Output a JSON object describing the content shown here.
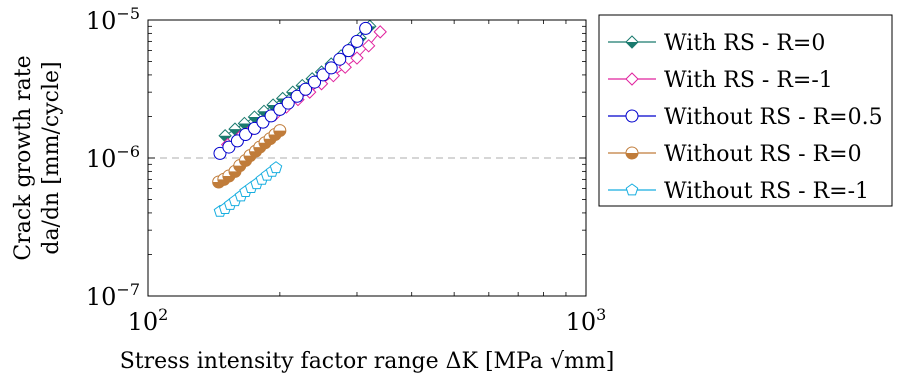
{
  "chart_data": {
    "type": "scatter",
    "xlabel": "Stress intensity factor range ΔK [MPa √mm]",
    "ylabel_line1": "Crack growth rate",
    "ylabel_line2": "da/dn [mm/cycle]",
    "xscale": "log",
    "yscale": "log",
    "xlim": [
      100,
      1000
    ],
    "ylim": [
      1e-07,
      1e-05
    ],
    "xticks": [
      {
        "value": 100,
        "label": "10",
        "exp": "2"
      },
      {
        "value": 1000,
        "label": "10",
        "exp": "3"
      }
    ],
    "yticks": [
      {
        "value": 1e-07,
        "label": "10",
        "exp": "−7"
      },
      {
        "value": 1e-06,
        "label": "10",
        "exp": "−6"
      },
      {
        "value": 1e-05,
        "label": "10",
        "exp": "−5"
      }
    ],
    "reference_line": {
      "y": 1e-06,
      "style": "dashed"
    },
    "legend_position": "outside-right",
    "series": [
      {
        "name": "With RS - R=0",
        "color": "#1a7a6e",
        "marker": "diamond-filled-half",
        "x": [
          150,
          158,
          166,
          175,
          184,
          193,
          203,
          214,
          225,
          237,
          249,
          262,
          276,
          290,
          305,
          321
        ],
        "y": [
          1.45e-06,
          1.62e-06,
          1.78e-06,
          1.98e-06,
          2.18e-06,
          2.42e-06,
          2.7e-06,
          3e-06,
          3.35e-06,
          3.75e-06,
          4.2e-06,
          4.8e-06,
          5.5e-06,
          6.3e-06,
          7.4e-06,
          9e-06
        ]
      },
      {
        "name": "With RS - R=-1",
        "color": "#e0239e",
        "marker": "diamond",
        "x": [
          152,
          162,
          172,
          183,
          195,
          207,
          220,
          234,
          249,
          265,
          282,
          300,
          319,
          339
        ],
        "y": [
          1.25e-06,
          1.42e-06,
          1.6e-06,
          1.82e-06,
          2.06e-06,
          2.34e-06,
          2.65e-06,
          3e-06,
          3.45e-06,
          3.95e-06,
          4.55e-06,
          5.3e-06,
          6.5e-06,
          8.2e-06
        ]
      },
      {
        "name": "Without RS - R=0.5",
        "color": "#0000cc",
        "marker": "circle",
        "x": [
          146,
          153,
          160,
          167,
          175,
          183,
          191,
          200,
          209,
          219,
          229,
          240,
          251,
          262,
          274,
          287,
          300,
          314
        ],
        "y": [
          1.08e-06,
          1.2e-06,
          1.33e-06,
          1.48e-06,
          1.64e-06,
          1.82e-06,
          2.02e-06,
          2.25e-06,
          2.5e-06,
          2.8e-06,
          3.15e-06,
          3.55e-06,
          4e-06,
          4.5e-06,
          5.2e-06,
          6e-06,
          7e-06,
          8.7e-06
        ]
      },
      {
        "name": "Without RS - R=0",
        "color": "#c07c3a",
        "marker": "circle-half",
        "x": [
          145,
          149,
          153,
          158,
          162,
          167,
          171,
          176,
          180,
          185,
          190,
          195,
          200
        ],
        "y": [
          6.7e-07,
          7e-07,
          7.4e-07,
          8e-07,
          8.8e-07,
          9.6e-07,
          1.04e-06,
          1.12e-06,
          1.2e-06,
          1.29e-06,
          1.38e-06,
          1.48e-06,
          1.58e-06
        ]
      },
      {
        "name": "Without RS - R=-1",
        "color": "#18aee0",
        "marker": "pentagon",
        "x": [
          146,
          150,
          154,
          158,
          163,
          167,
          172,
          177,
          182,
          187,
          192,
          196
        ],
        "y": [
          4.1e-07,
          4.3e-07,
          4.6e-07,
          4.9e-07,
          5.3e-07,
          5.7e-07,
          6.1e-07,
          6.5e-07,
          7e-07,
          7.5e-07,
          8e-07,
          8.5e-07
        ]
      }
    ]
  }
}
